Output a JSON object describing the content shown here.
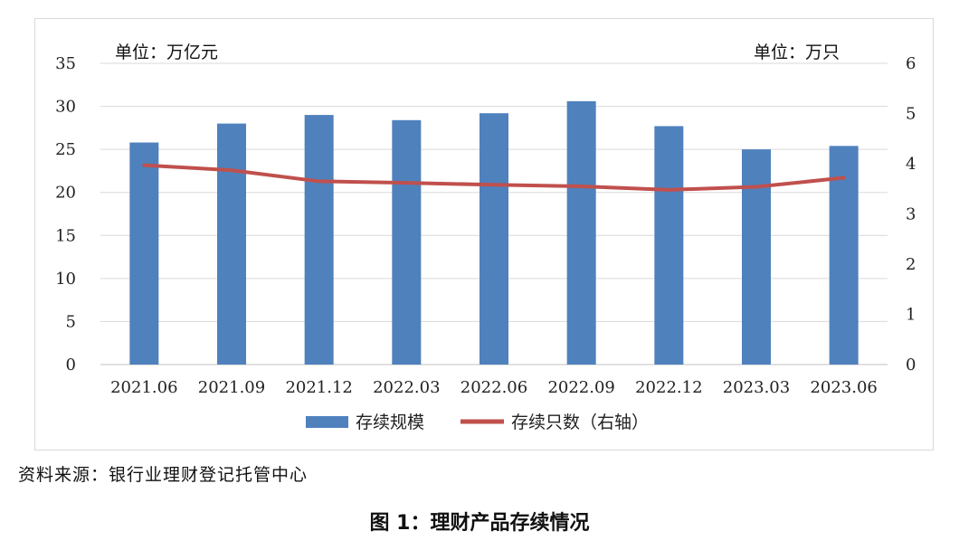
{
  "chart_data": {
    "type": "bar",
    "categories": [
      "2021.06",
      "2021.09",
      "2021.12",
      "2022.03",
      "2022.06",
      "2022.09",
      "2022.12",
      "2023.03",
      "2023.06"
    ],
    "series": [
      {
        "name": "存续规模",
        "type": "bar",
        "axis": "left",
        "color": "#4f81bd",
        "values": [
          25.8,
          28.0,
          29.0,
          28.4,
          29.2,
          30.6,
          27.7,
          25.0,
          25.4
        ]
      },
      {
        "name": "存续只数（右轴）",
        "type": "line",
        "axis": "right",
        "color": "#c0504d",
        "values": [
          3.97,
          3.87,
          3.65,
          3.62,
          3.58,
          3.55,
          3.48,
          3.54,
          3.72
        ]
      }
    ],
    "left_axis": {
      "unit_label": "单位：万亿元",
      "ylim": [
        0,
        35
      ],
      "ticks": [
        "0",
        "5",
        "10",
        "15",
        "20",
        "25",
        "30",
        "35"
      ]
    },
    "right_axis": {
      "unit_label": "单位：万只",
      "ylim": [
        0,
        6
      ],
      "ticks": [
        "0",
        "1",
        "2",
        "3",
        "4",
        "5",
        "6"
      ]
    },
    "grid": true,
    "legend_position": "bottom"
  },
  "source_note": "资料来源：银行业理财登记托管中心",
  "caption": "图 1：理财产品存续情况"
}
